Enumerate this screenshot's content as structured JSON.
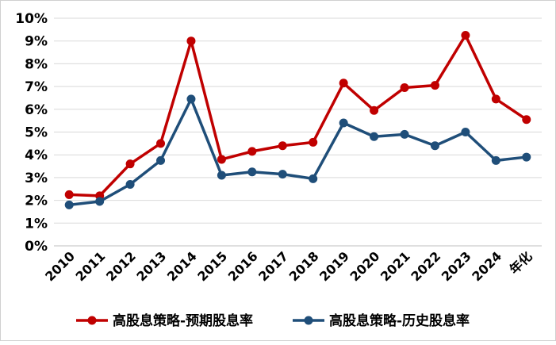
{
  "chart_data": {
    "type": "line",
    "title": "",
    "xlabel": "",
    "ylabel": "",
    "categories": [
      "2010",
      "2011",
      "2012",
      "2013",
      "2014",
      "2015",
      "2016",
      "2017",
      "2018",
      "2019",
      "2020",
      "2021",
      "2022",
      "2023",
      "2024",
      "年化"
    ],
    "ylim": [
      0,
      10
    ],
    "yticks": [
      "0%",
      "1%",
      "2%",
      "3%",
      "4%",
      "5%",
      "6%",
      "7%",
      "8%",
      "9%",
      "10%"
    ],
    "grid": true,
    "legend_position": "bottom",
    "series": [
      {
        "name": "高股息策略-预期股息率",
        "color": "#c00000",
        "values": [
          2.25,
          2.2,
          3.6,
          4.5,
          9.0,
          3.8,
          4.15,
          4.4,
          4.55,
          7.15,
          5.95,
          6.95,
          7.05,
          9.25,
          6.45,
          5.55
        ]
      },
      {
        "name": "高股息策略-历史股息率",
        "color": "#1f4e79",
        "values": [
          1.8,
          1.95,
          2.7,
          3.75,
          6.45,
          3.1,
          3.25,
          3.15,
          2.95,
          5.4,
          4.8,
          4.9,
          4.4,
          5.0,
          3.75,
          3.9
        ]
      }
    ]
  }
}
